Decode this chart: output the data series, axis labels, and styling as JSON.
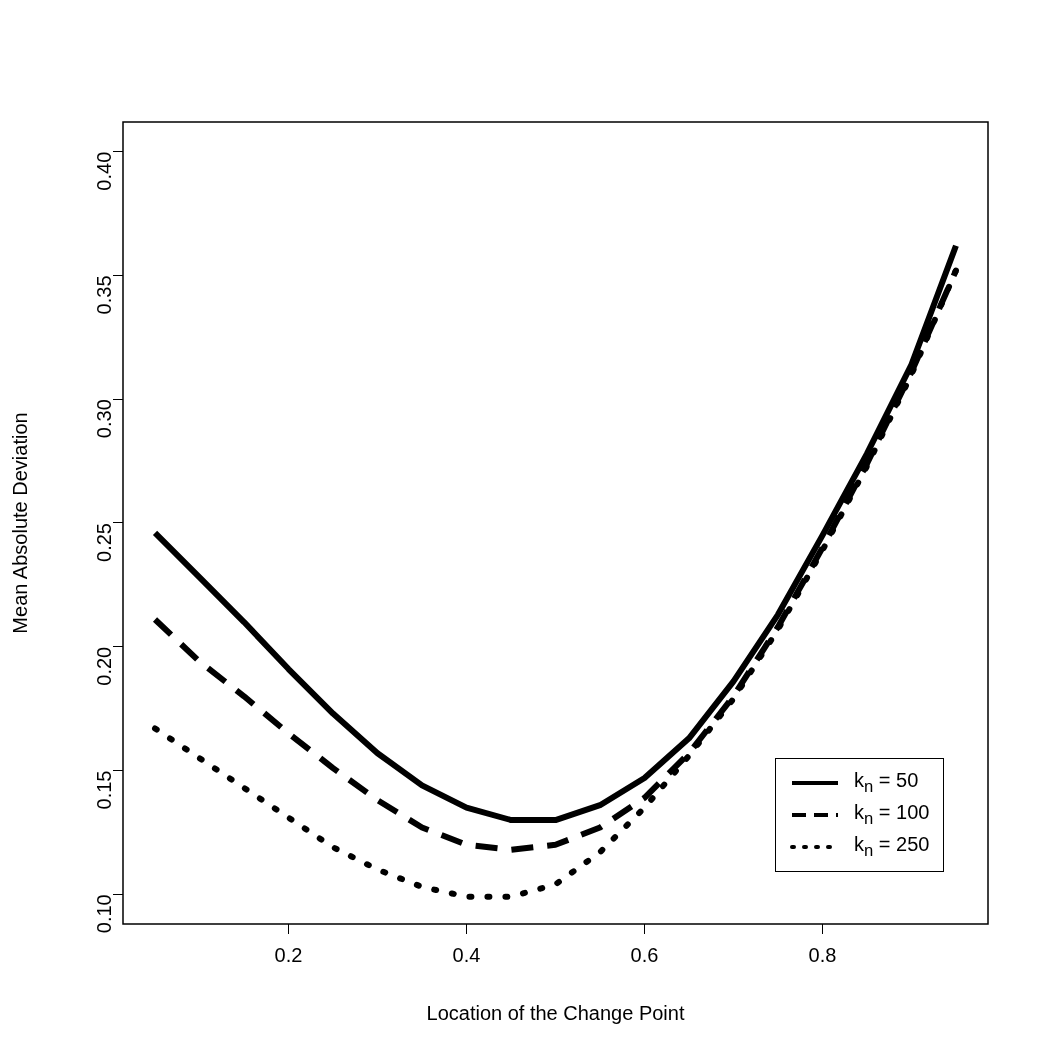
{
  "chart_data": {
    "type": "line",
    "xlabel": "Location of the Change Point",
    "ylabel": "Mean Absolute Deviation",
    "x": [
      0.05,
      0.1,
      0.15,
      0.2,
      0.25,
      0.3,
      0.35,
      0.4,
      0.45,
      0.5,
      0.55,
      0.6,
      0.65,
      0.7,
      0.75,
      0.8,
      0.85,
      0.9,
      0.95
    ],
    "series": [
      {
        "name": "k$_{n}$ = 50",
        "color": "#000000",
        "line_style": "solid",
        "values": [
          0.246,
          0.228,
          0.21,
          0.191,
          0.173,
          0.157,
          0.144,
          0.135,
          0.13,
          0.13,
          0.136,
          0.147,
          0.163,
          0.186,
          0.213,
          0.245,
          0.278,
          0.314,
          0.362
        ]
      },
      {
        "name": "k$_{n}$ = 100",
        "color": "#000000",
        "line_style": "dashed",
        "values": [
          0.211,
          0.194,
          0.18,
          0.165,
          0.151,
          0.138,
          0.127,
          0.12,
          0.118,
          0.12,
          0.127,
          0.139,
          0.157,
          0.18,
          0.208,
          0.24,
          0.274,
          0.311,
          0.352
        ]
      },
      {
        "name": "k$_{n}$ = 250",
        "color": "#000000",
        "line_style": "dotted",
        "values": [
          0.167,
          0.155,
          0.143,
          0.131,
          0.119,
          0.11,
          0.103,
          0.099,
          0.099,
          0.104,
          0.117,
          0.135,
          0.156,
          0.179,
          0.207,
          0.239,
          0.273,
          0.31,
          0.352
        ]
      }
    ],
    "xlim": [
      0.014,
      0.986
    ],
    "xticks": [
      0.2,
      0.4,
      0.6,
      0.8
    ],
    "ylim": [
      0.088,
      0.412
    ],
    "yticks": [
      {
        "value": 0.1,
        "label": "0.10"
      },
      0.15,
      {
        "value": 0.2,
        "label": "0.20"
      },
      0.25,
      {
        "value": 0.3,
        "label": "0.30"
      },
      0.35,
      {
        "value": 0.4,
        "label": "0.40"
      }
    ],
    "grid": false,
    "legend": "bottom right",
    "marker": "none"
  }
}
